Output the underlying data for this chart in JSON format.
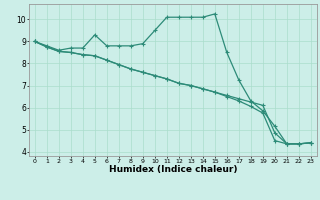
{
  "xlabel": "Humidex (Indice chaleur)",
  "bg_color": "#cceee8",
  "line_color": "#2d8b78",
  "grid_color": "#aaddcc",
  "xlim": [
    -0.5,
    23.5
  ],
  "ylim": [
    3.8,
    10.7
  ],
  "xticks": [
    0,
    1,
    2,
    3,
    4,
    5,
    6,
    7,
    8,
    9,
    10,
    11,
    12,
    13,
    14,
    15,
    16,
    17,
    18,
    19,
    20,
    21,
    22,
    23
  ],
  "yticks": [
    4,
    5,
    6,
    7,
    8,
    9,
    10
  ],
  "line1_x": [
    0,
    1,
    2,
    3,
    4,
    5,
    6,
    7,
    8,
    9,
    10,
    11,
    12,
    13,
    14,
    15,
    16,
    17,
    18,
    19,
    20,
    21,
    22,
    23
  ],
  "line1_y": [
    9.0,
    8.8,
    8.6,
    8.7,
    8.7,
    9.3,
    8.8,
    8.8,
    8.8,
    8.9,
    9.5,
    10.1,
    10.1,
    10.1,
    10.1,
    10.25,
    8.5,
    7.25,
    6.3,
    5.85,
    5.15,
    4.35,
    4.35,
    4.4
  ],
  "line2_x": [
    0,
    1,
    2,
    3,
    4,
    5,
    6,
    7,
    8,
    9,
    10,
    11,
    12,
    13,
    14,
    15,
    16,
    17,
    18,
    19,
    20,
    21,
    22,
    23
  ],
  "line2_y": [
    9.0,
    8.75,
    8.55,
    8.5,
    8.4,
    8.35,
    8.15,
    7.95,
    7.75,
    7.6,
    7.45,
    7.3,
    7.1,
    7.0,
    6.85,
    6.7,
    6.55,
    6.4,
    6.25,
    6.1,
    4.85,
    4.35,
    4.35,
    4.4
  ],
  "line3_x": [
    0,
    1,
    2,
    3,
    4,
    5,
    6,
    7,
    8,
    9,
    10,
    11,
    12,
    13,
    14,
    15,
    16,
    17,
    18,
    19,
    20,
    21,
    22,
    23
  ],
  "line3_y": [
    9.0,
    8.75,
    8.55,
    8.5,
    8.4,
    8.35,
    8.15,
    7.95,
    7.75,
    7.6,
    7.45,
    7.3,
    7.1,
    7.0,
    6.85,
    6.7,
    6.5,
    6.3,
    6.05,
    5.75,
    4.5,
    4.35,
    4.35,
    4.4
  ]
}
